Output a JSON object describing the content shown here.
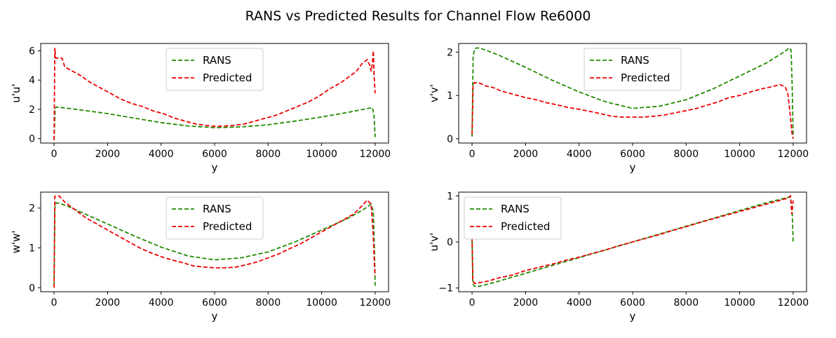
{
  "figure": {
    "title": "RANS vs Predicted Results for Channel Flow Re6000"
  },
  "colors": {
    "rans": "#228b00",
    "predicted": "#ee0000"
  },
  "chart_data": [
    {
      "type": "line",
      "xlabel": "y",
      "ylabel": "u'u'",
      "xlim": [
        -500,
        12500
      ],
      "ylim": [
        -0.3,
        6.5
      ],
      "xticks": [
        0,
        2000,
        4000,
        6000,
        8000,
        10000,
        12000
      ],
      "yticks": [
        0,
        2,
        4,
        6
      ],
      "legend": "top-center",
      "series": [
        {
          "name": "RANS",
          "x": [
            0,
            40,
            100,
            300,
            600,
            1000,
            2000,
            3000,
            4000,
            5000,
            6000,
            7000,
            8000,
            9000,
            10000,
            11000,
            11700,
            11900,
            11960,
            12000
          ],
          "y": [
            -0.1,
            2.1,
            2.15,
            2.12,
            2.05,
            1.96,
            1.71,
            1.4,
            1.1,
            0.87,
            0.75,
            0.8,
            0.95,
            1.2,
            1.48,
            1.8,
            2.05,
            2.12,
            1.5,
            0.1
          ]
        },
        {
          "name": "Predicted",
          "x": [
            0,
            30,
            60,
            100,
            300,
            400,
            700,
            1000,
            1300,
            1600,
            1900,
            2200,
            2500,
            2900,
            3300,
            3700,
            4100,
            4500,
            4900,
            5300,
            5700,
            6000,
            6300,
            6700,
            7100,
            7500,
            7900,
            8300,
            8700,
            9100,
            9500,
            9900,
            10300,
            10700,
            11000,
            11300,
            11500,
            11700,
            11800,
            11850,
            11900,
            11930,
            11960,
            12000
          ],
          "y": [
            -0.1,
            6.2,
            5.5,
            5.5,
            5.5,
            4.9,
            4.6,
            4.3,
            3.9,
            3.6,
            3.3,
            3.0,
            2.7,
            2.4,
            2.2,
            1.9,
            1.7,
            1.4,
            1.2,
            1.0,
            0.9,
            0.85,
            0.85,
            0.9,
            1.0,
            1.2,
            1.4,
            1.6,
            1.9,
            2.2,
            2.5,
            2.9,
            3.4,
            3.8,
            4.2,
            4.6,
            5.1,
            5.4,
            5.0,
            4.6,
            5.2,
            6.0,
            4.3,
            3.1
          ]
        }
      ]
    },
    {
      "type": "line",
      "xlabel": "y",
      "ylabel": "v'v'",
      "xlim": [
        -500,
        12500
      ],
      "ylim": [
        -0.1,
        2.2
      ],
      "xticks": [
        0,
        2000,
        4000,
        6000,
        8000,
        10000,
        12000
      ],
      "yticks": [
        0,
        1,
        2
      ],
      "legend": "top-center",
      "series": [
        {
          "name": "RANS",
          "x": [
            0,
            40,
            100,
            200,
            400,
            700,
            1000,
            2000,
            3000,
            4000,
            5000,
            6000,
            7000,
            8000,
            9000,
            10000,
            11000,
            11700,
            11850,
            11920,
            11960,
            12000
          ],
          "y": [
            0.05,
            1.9,
            2.08,
            2.1,
            2.07,
            2.0,
            1.93,
            1.65,
            1.35,
            1.08,
            0.85,
            0.7,
            0.75,
            0.9,
            1.15,
            1.45,
            1.75,
            2.02,
            2.1,
            2.05,
            1.3,
            0.05
          ]
        },
        {
          "name": "Predicted",
          "x": [
            0,
            40,
            100,
            300,
            500,
            800,
            1100,
            1400,
            1700,
            2000,
            2400,
            2800,
            3200,
            3600,
            4000,
            4400,
            4800,
            5200,
            5600,
            6000,
            6400,
            6800,
            7200,
            7600,
            8000,
            8400,
            8800,
            9200,
            9600,
            10000,
            10400,
            10800,
            11200,
            11500,
            11700,
            11800,
            11900,
            11950,
            12000
          ],
          "y": [
            0.1,
            1.25,
            1.3,
            1.28,
            1.22,
            1.18,
            1.1,
            1.05,
            1.0,
            0.95,
            0.9,
            0.83,
            0.78,
            0.72,
            0.68,
            0.63,
            0.58,
            0.52,
            0.5,
            0.5,
            0.5,
            0.52,
            0.55,
            0.6,
            0.65,
            0.7,
            0.78,
            0.85,
            0.95,
            1.0,
            1.08,
            1.15,
            1.2,
            1.25,
            1.2,
            1.05,
            0.5,
            0.15,
            0.0
          ]
        }
      ]
    },
    {
      "type": "line",
      "xlabel": "y",
      "ylabel": "w'w'",
      "xlim": [
        -500,
        12500
      ],
      "ylim": [
        -0.1,
        2.4
      ],
      "xticks": [
        0,
        2000,
        4000,
        6000,
        8000,
        10000,
        12000
      ],
      "yticks": [
        0,
        1,
        2
      ],
      "legend": "top-center",
      "series": [
        {
          "name": "RANS",
          "x": [
            0,
            30,
            80,
            200,
            500,
            1000,
            2000,
            3000,
            4000,
            5000,
            6000,
            7000,
            8000,
            9000,
            10000,
            11000,
            11600,
            11850,
            11930,
            11970,
            12000
          ],
          "y": [
            0.05,
            2.0,
            2.13,
            2.12,
            2.05,
            1.9,
            1.6,
            1.3,
            1.02,
            0.8,
            0.7,
            0.75,
            0.9,
            1.15,
            1.45,
            1.75,
            1.98,
            2.1,
            1.9,
            1.0,
            0.05
          ]
        },
        {
          "name": "Predicted",
          "x": [
            0,
            30,
            80,
            200,
            400,
            600,
            900,
            1200,
            1600,
            2000,
            2400,
            2800,
            3200,
            3600,
            4000,
            4400,
            4800,
            5200,
            5600,
            6000,
            6400,
            6800,
            7200,
            7600,
            8000,
            8400,
            8800,
            9200,
            9600,
            10000,
            10400,
            10800,
            11200,
            11500,
            11700,
            11850,
            11930,
            11970,
            12000
          ],
          "y": [
            0.0,
            2.3,
            2.3,
            2.3,
            2.15,
            2.05,
            1.9,
            1.75,
            1.6,
            1.45,
            1.3,
            1.15,
            1.0,
            0.88,
            0.78,
            0.7,
            0.63,
            0.55,
            0.52,
            0.5,
            0.5,
            0.52,
            0.58,
            0.65,
            0.75,
            0.85,
            0.98,
            1.1,
            1.25,
            1.4,
            1.55,
            1.7,
            1.85,
            2.05,
            2.2,
            2.1,
            1.3,
            0.6,
            0.3
          ]
        }
      ]
    },
    {
      "type": "line",
      "xlabel": "y",
      "ylabel": "u'v'",
      "xlim": [
        -500,
        12500
      ],
      "ylim": [
        -1.08,
        1.08
      ],
      "xticks": [
        0,
        2000,
        4000,
        6000,
        8000,
        10000,
        12000
      ],
      "yticks": [
        -1,
        0,
        1
      ],
      "legend": "top-left",
      "series": [
        {
          "name": "RANS",
          "x": [
            0,
            30,
            80,
            200,
            500,
            1000,
            2000,
            3000,
            4000,
            5000,
            6000,
            7000,
            8000,
            9000,
            10000,
            11000,
            11700,
            11900,
            11960,
            12000
          ],
          "y": [
            0.05,
            -0.9,
            -0.96,
            -0.97,
            -0.93,
            -0.85,
            -0.68,
            -0.51,
            -0.34,
            -0.17,
            0.0,
            0.17,
            0.34,
            0.51,
            0.68,
            0.85,
            0.95,
            0.98,
            0.7,
            0.0
          ]
        },
        {
          "name": "Predicted",
          "x": [
            0,
            30,
            100,
            300,
            600,
            1000,
            1500,
            2000,
            2500,
            3000,
            3500,
            4000,
            4500,
            5000,
            5500,
            6000,
            6500,
            7000,
            7500,
            8000,
            8500,
            9000,
            9500,
            10000,
            10500,
            11000,
            11500,
            11800,
            11900,
            11950,
            12000
          ],
          "y": [
            0.1,
            -0.85,
            -0.9,
            -0.88,
            -0.85,
            -0.78,
            -0.72,
            -0.62,
            -0.55,
            -0.48,
            -0.4,
            -0.33,
            -0.25,
            -0.17,
            -0.08,
            0.0,
            0.08,
            0.16,
            0.25,
            0.33,
            0.42,
            0.5,
            0.58,
            0.66,
            0.74,
            0.82,
            0.9,
            0.95,
            1.0,
            0.6,
            0.9
          ]
        }
      ]
    }
  ]
}
